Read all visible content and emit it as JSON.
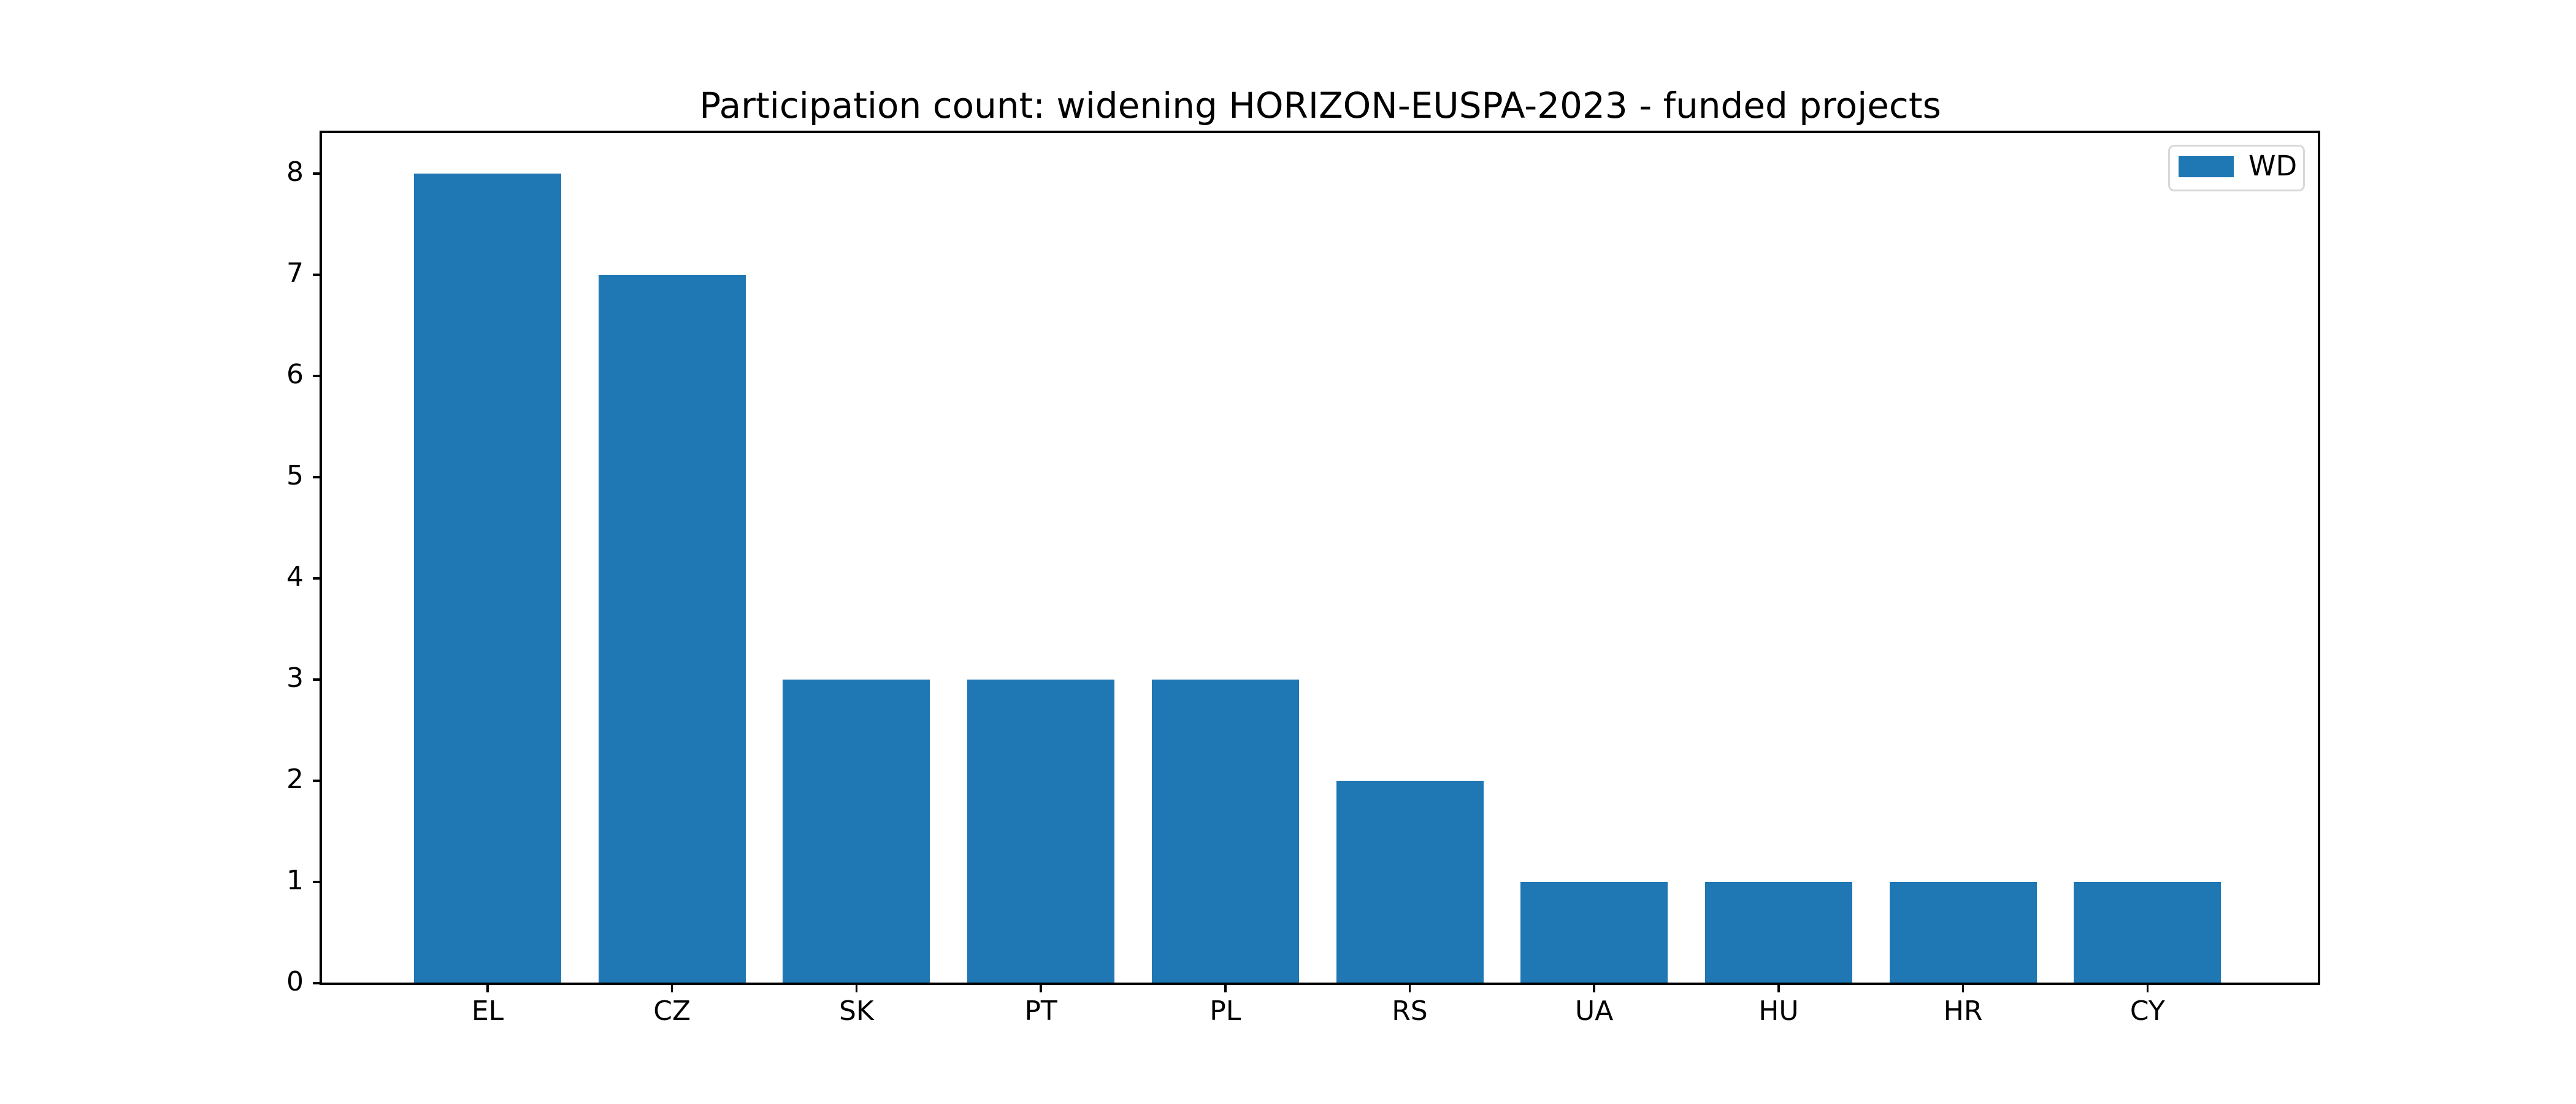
{
  "figure": {
    "background_color": "#ffffff",
    "text_color": "#000000"
  },
  "chart_data": {
    "type": "bar",
    "title": "Participation count: widening HORIZON-EUSPA-2023 - funded projects",
    "categories": [
      "EL",
      "CZ",
      "SK",
      "PT",
      "PL",
      "RS",
      "UA",
      "HU",
      "HR",
      "CY"
    ],
    "series": [
      {
        "name": "WD",
        "values": [
          8,
          7,
          3,
          3,
          3,
          2,
          1,
          1,
          1,
          1
        ]
      }
    ],
    "xlabel": "",
    "ylabel": "",
    "ylim": [
      0,
      8.4
    ],
    "yticks": [
      "0",
      "1",
      "2",
      "3",
      "4",
      "5",
      "6",
      "7",
      "8"
    ],
    "grid": false,
    "legend": {
      "position": "upper right",
      "entries": [
        "WD"
      ],
      "border_color": "#d8d8d8"
    },
    "bar_color": "#1f77b4"
  }
}
